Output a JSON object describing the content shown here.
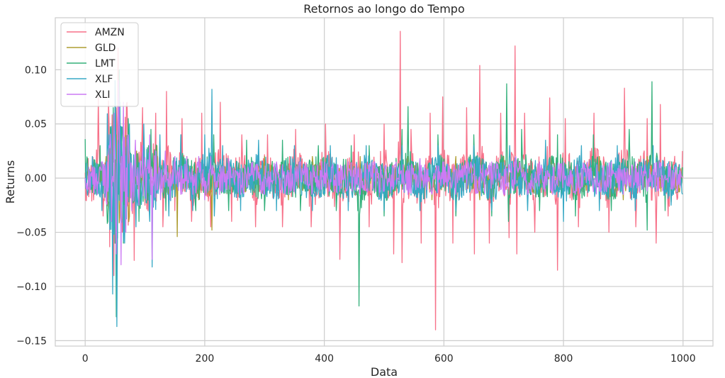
{
  "chart_data": {
    "type": "line",
    "title": "Retornos ao longo do Tempo",
    "xlabel": "Data",
    "ylabel": "Returns",
    "xlim": [
      -50,
      1050
    ],
    "ylim": [
      -0.155,
      0.148
    ],
    "xticks": [
      0,
      200,
      400,
      600,
      800,
      1000
    ],
    "xtick_labels": [
      "0",
      "200",
      "400",
      "600",
      "800",
      "1000"
    ],
    "yticks": [
      -0.15,
      -0.1,
      -0.05,
      0.0,
      0.05,
      0.1
    ],
    "ytick_labels": [
      "−0.15",
      "−0.10",
      "−0.05",
      "0.00",
      "0.05",
      "0.10"
    ],
    "grid": true,
    "legend_position": "top-left",
    "series": [
      {
        "name": "AMZN",
        "color": "#f77189",
        "x": [
          0,
          15,
          22,
          30,
          40,
          48,
          55,
          62,
          70,
          82,
          96,
          105,
          118,
          130,
          136,
          150,
          162,
          178,
          195,
          210,
          226,
          245,
          262,
          285,
          305,
          330,
          352,
          378,
          402,
          426,
          450,
          475,
          500,
          516,
          527,
          530,
          545,
          562,
          577,
          586,
          598,
          615,
          638,
          651,
          660,
          676,
          695,
          709,
          719,
          722,
          735,
          752,
          777,
          790,
          803,
          825,
          851,
          876,
          902,
          921,
          940,
          955,
          962,
          975,
          999
        ],
        "y": [
          0.005,
          -0.01,
          0.075,
          -0.035,
          0.05,
          -0.09,
          0.12,
          -0.05,
          0.07,
          -0.076,
          0.065,
          -0.03,
          0.06,
          -0.045,
          0.08,
          -0.03,
          0.055,
          -0.04,
          0.06,
          -0.045,
          0.07,
          -0.04,
          0.04,
          -0.045,
          0.04,
          -0.045,
          0.045,
          -0.045,
          0.05,
          -0.075,
          0.04,
          -0.045,
          0.05,
          -0.07,
          0.1355,
          -0.078,
          0.045,
          -0.06,
          0.06,
          -0.14,
          0.075,
          -0.06,
          0.065,
          -0.07,
          0.104,
          -0.06,
          0.06,
          -0.055,
          0.122,
          -0.07,
          0.06,
          -0.05,
          0.074,
          -0.085,
          0.055,
          -0.045,
          0.06,
          -0.05,
          0.083,
          -0.045,
          0.055,
          -0.06,
          0.068,
          -0.035,
          0.025
        ]
      },
      {
        "name": "GLD",
        "color": "#ae9d31",
        "x": [
          0,
          20,
          35,
          45,
          52,
          58,
          64,
          72,
          86,
          100,
          120,
          140,
          154,
          170,
          190,
          212,
          230,
          260,
          300,
          340,
          380,
          420,
          460,
          500,
          540,
          580,
          620,
          660,
          700,
          740,
          780,
          820,
          860,
          900,
          940,
          980,
          999
        ],
        "y": [
          0.0,
          -0.015,
          0.02,
          -0.04,
          0.04,
          -0.035,
          0.03,
          -0.025,
          0.025,
          -0.02,
          0.03,
          -0.025,
          -0.054,
          0.02,
          -0.02,
          -0.048,
          0.02,
          -0.02,
          0.02,
          -0.02,
          0.02,
          -0.02,
          0.02,
          -0.02,
          0.02,
          -0.02,
          0.02,
          -0.02,
          0.02,
          -0.02,
          0.02,
          -0.02,
          0.02,
          -0.02,
          0.02,
          -0.022,
          0.0
        ]
      },
      {
        "name": "LMT",
        "color": "#33b07a",
        "x": [
          0,
          10,
          25,
          38,
          47,
          52,
          57,
          64,
          72,
          90,
          110,
          135,
          160,
          185,
          215,
          240,
          270,
          300,
          330,
          360,
          390,
          420,
          445,
          458,
          475,
          500,
          530,
          540,
          560,
          590,
          620,
          650,
          680,
          705,
          708,
          730,
          760,
          790,
          820,
          850,
          880,
          910,
          940,
          948,
          970,
          999
        ],
        "y": [
          0.036,
          -0.01,
          0.03,
          -0.04,
          0.065,
          -0.128,
          0.1,
          -0.06,
          0.055,
          -0.04,
          0.045,
          -0.03,
          0.04,
          -0.03,
          0.04,
          -0.03,
          0.035,
          -0.03,
          0.035,
          -0.03,
          0.03,
          -0.03,
          0.03,
          -0.118,
          0.03,
          -0.035,
          0.045,
          0.066,
          -0.03,
          0.04,
          -0.035,
          0.04,
          -0.035,
          0.087,
          -0.04,
          0.045,
          -0.03,
          0.04,
          -0.035,
          0.04,
          -0.03,
          0.045,
          -0.048,
          0.089,
          -0.03,
          0.01
        ]
      },
      {
        "name": "XLF",
        "color": "#38a9c5",
        "x": [
          0,
          12,
          28,
          40,
          46,
          50,
          53,
          58,
          66,
          74,
          85,
          98,
          108,
          112,
          125,
          140,
          160,
          180,
          200,
          212,
          216,
          230,
          260,
          290,
          320,
          350,
          380,
          410,
          440,
          470,
          500,
          530,
          560,
          590,
          620,
          650,
          680,
          710,
          740,
          770,
          800,
          830,
          860,
          890,
          920,
          950,
          980,
          999
        ],
        "y": [
          0.0,
          0.02,
          -0.03,
          0.04,
          -0.107,
          0.09,
          -0.137,
          0.07,
          -0.06,
          0.05,
          -0.045,
          0.05,
          -0.04,
          -0.082,
          0.04,
          -0.035,
          0.04,
          -0.03,
          0.04,
          0.082,
          -0.035,
          0.03,
          -0.03,
          0.035,
          -0.03,
          0.03,
          -0.03,
          0.03,
          -0.03,
          0.03,
          -0.03,
          0.03,
          -0.03,
          0.03,
          -0.03,
          0.03,
          -0.03,
          0.03,
          -0.03,
          0.035,
          -0.04,
          0.03,
          -0.03,
          0.03,
          -0.03,
          0.03,
          -0.025,
          -0.015
        ]
      },
      {
        "name": "XLI",
        "color": "#cc7af4",
        "x": [
          0,
          5,
          12,
          20,
          28,
          35,
          40,
          44,
          48,
          52,
          56,
          60,
          64,
          68,
          72,
          78,
          84,
          90,
          96,
          102,
          108,
          112,
          118,
          126,
          134,
          142,
          150,
          160,
          170,
          180,
          190,
          200,
          210,
          225,
          240,
          260,
          280,
          300,
          320,
          340,
          360,
          380,
          400,
          420,
          440,
          460,
          480,
          500,
          520,
          540,
          560,
          580,
          600,
          620,
          640,
          660,
          680,
          700,
          720,
          740,
          760,
          780,
          800,
          820,
          840,
          860,
          880,
          900,
          920,
          940,
          960,
          980,
          999
        ],
        "y": [
          0.0,
          -0.01,
          0.01,
          -0.015,
          0.015,
          -0.02,
          0.03,
          -0.04,
          0.06,
          -0.07,
          0.09,
          -0.08,
          0.07,
          -0.05,
          0.04,
          -0.03,
          0.035,
          -0.025,
          0.03,
          -0.02,
          0.04,
          -0.075,
          0.025,
          -0.02,
          0.025,
          -0.02,
          0.02,
          -0.015,
          0.02,
          -0.015,
          0.02,
          -0.02,
          0.02,
          -0.015,
          0.018,
          -0.015,
          0.015,
          -0.015,
          0.015,
          -0.015,
          0.015,
          -0.012,
          0.015,
          -0.012,
          0.015,
          -0.015,
          0.015,
          -0.012,
          0.015,
          -0.015,
          0.018,
          -0.015,
          0.015,
          -0.015,
          0.015,
          -0.012,
          0.015,
          -0.015,
          0.02,
          -0.015,
          0.015,
          -0.012,
          0.015,
          -0.015,
          0.015,
          -0.012,
          0.015,
          -0.015,
          0.015,
          -0.012,
          0.015,
          -0.01,
          0.0
        ]
      }
    ]
  }
}
